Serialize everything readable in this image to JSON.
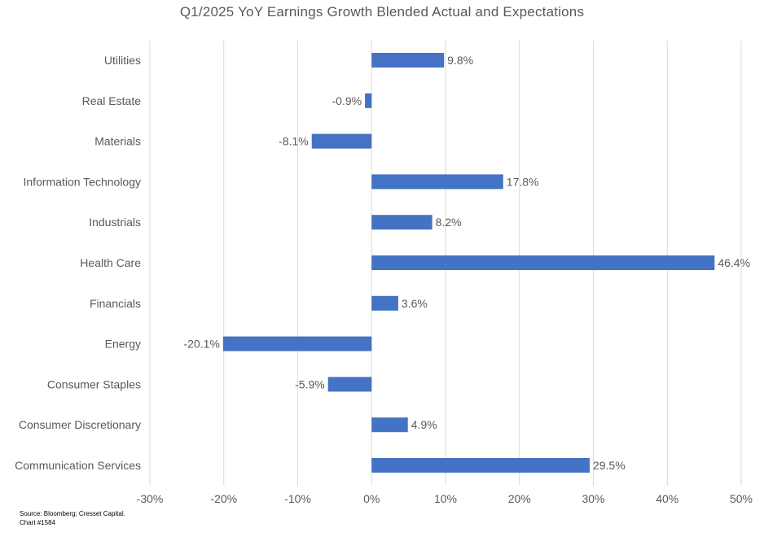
{
  "chart_data": {
    "type": "bar",
    "orientation": "horizontal",
    "title": "Q1/2025 YoY Earnings Growth Blended Actual and Expectations",
    "categories": [
      "Utilities",
      "Real Estate",
      "Materials",
      "Information Technology",
      "Industrials",
      "Health Care",
      "Financials",
      "Energy",
      "Consumer Staples",
      "Consumer Discretionary",
      "Communication Services"
    ],
    "values": [
      9.8,
      -0.9,
      -8.1,
      17.8,
      8.2,
      46.4,
      3.6,
      -20.1,
      -5.9,
      4.9,
      29.5
    ],
    "data_labels": [
      "9.8%",
      "-0.9%",
      "-8.1%",
      "17.8%",
      "8.2%",
      "46.4%",
      "3.6%",
      "-20.1%",
      "-5.9%",
      "4.9%",
      "29.5%"
    ],
    "xlim": [
      -30,
      50
    ],
    "x_ticks": [
      -30,
      -20,
      -10,
      0,
      10,
      20,
      30,
      40,
      50
    ],
    "x_tick_labels": [
      "-30%",
      "-20%",
      "-10%",
      "0%",
      "10%",
      "20%",
      "30%",
      "40%",
      "50%"
    ],
    "xlabel": "",
    "ylabel": "",
    "grid": true,
    "legend": "none",
    "bar_color": "#4472C4",
    "grid_color": "#D9D9D9",
    "text_color": "#595959"
  },
  "source": {
    "line1": "Source: Bloomberg; Cresset Capital.",
    "line2": "Chart #1584"
  }
}
